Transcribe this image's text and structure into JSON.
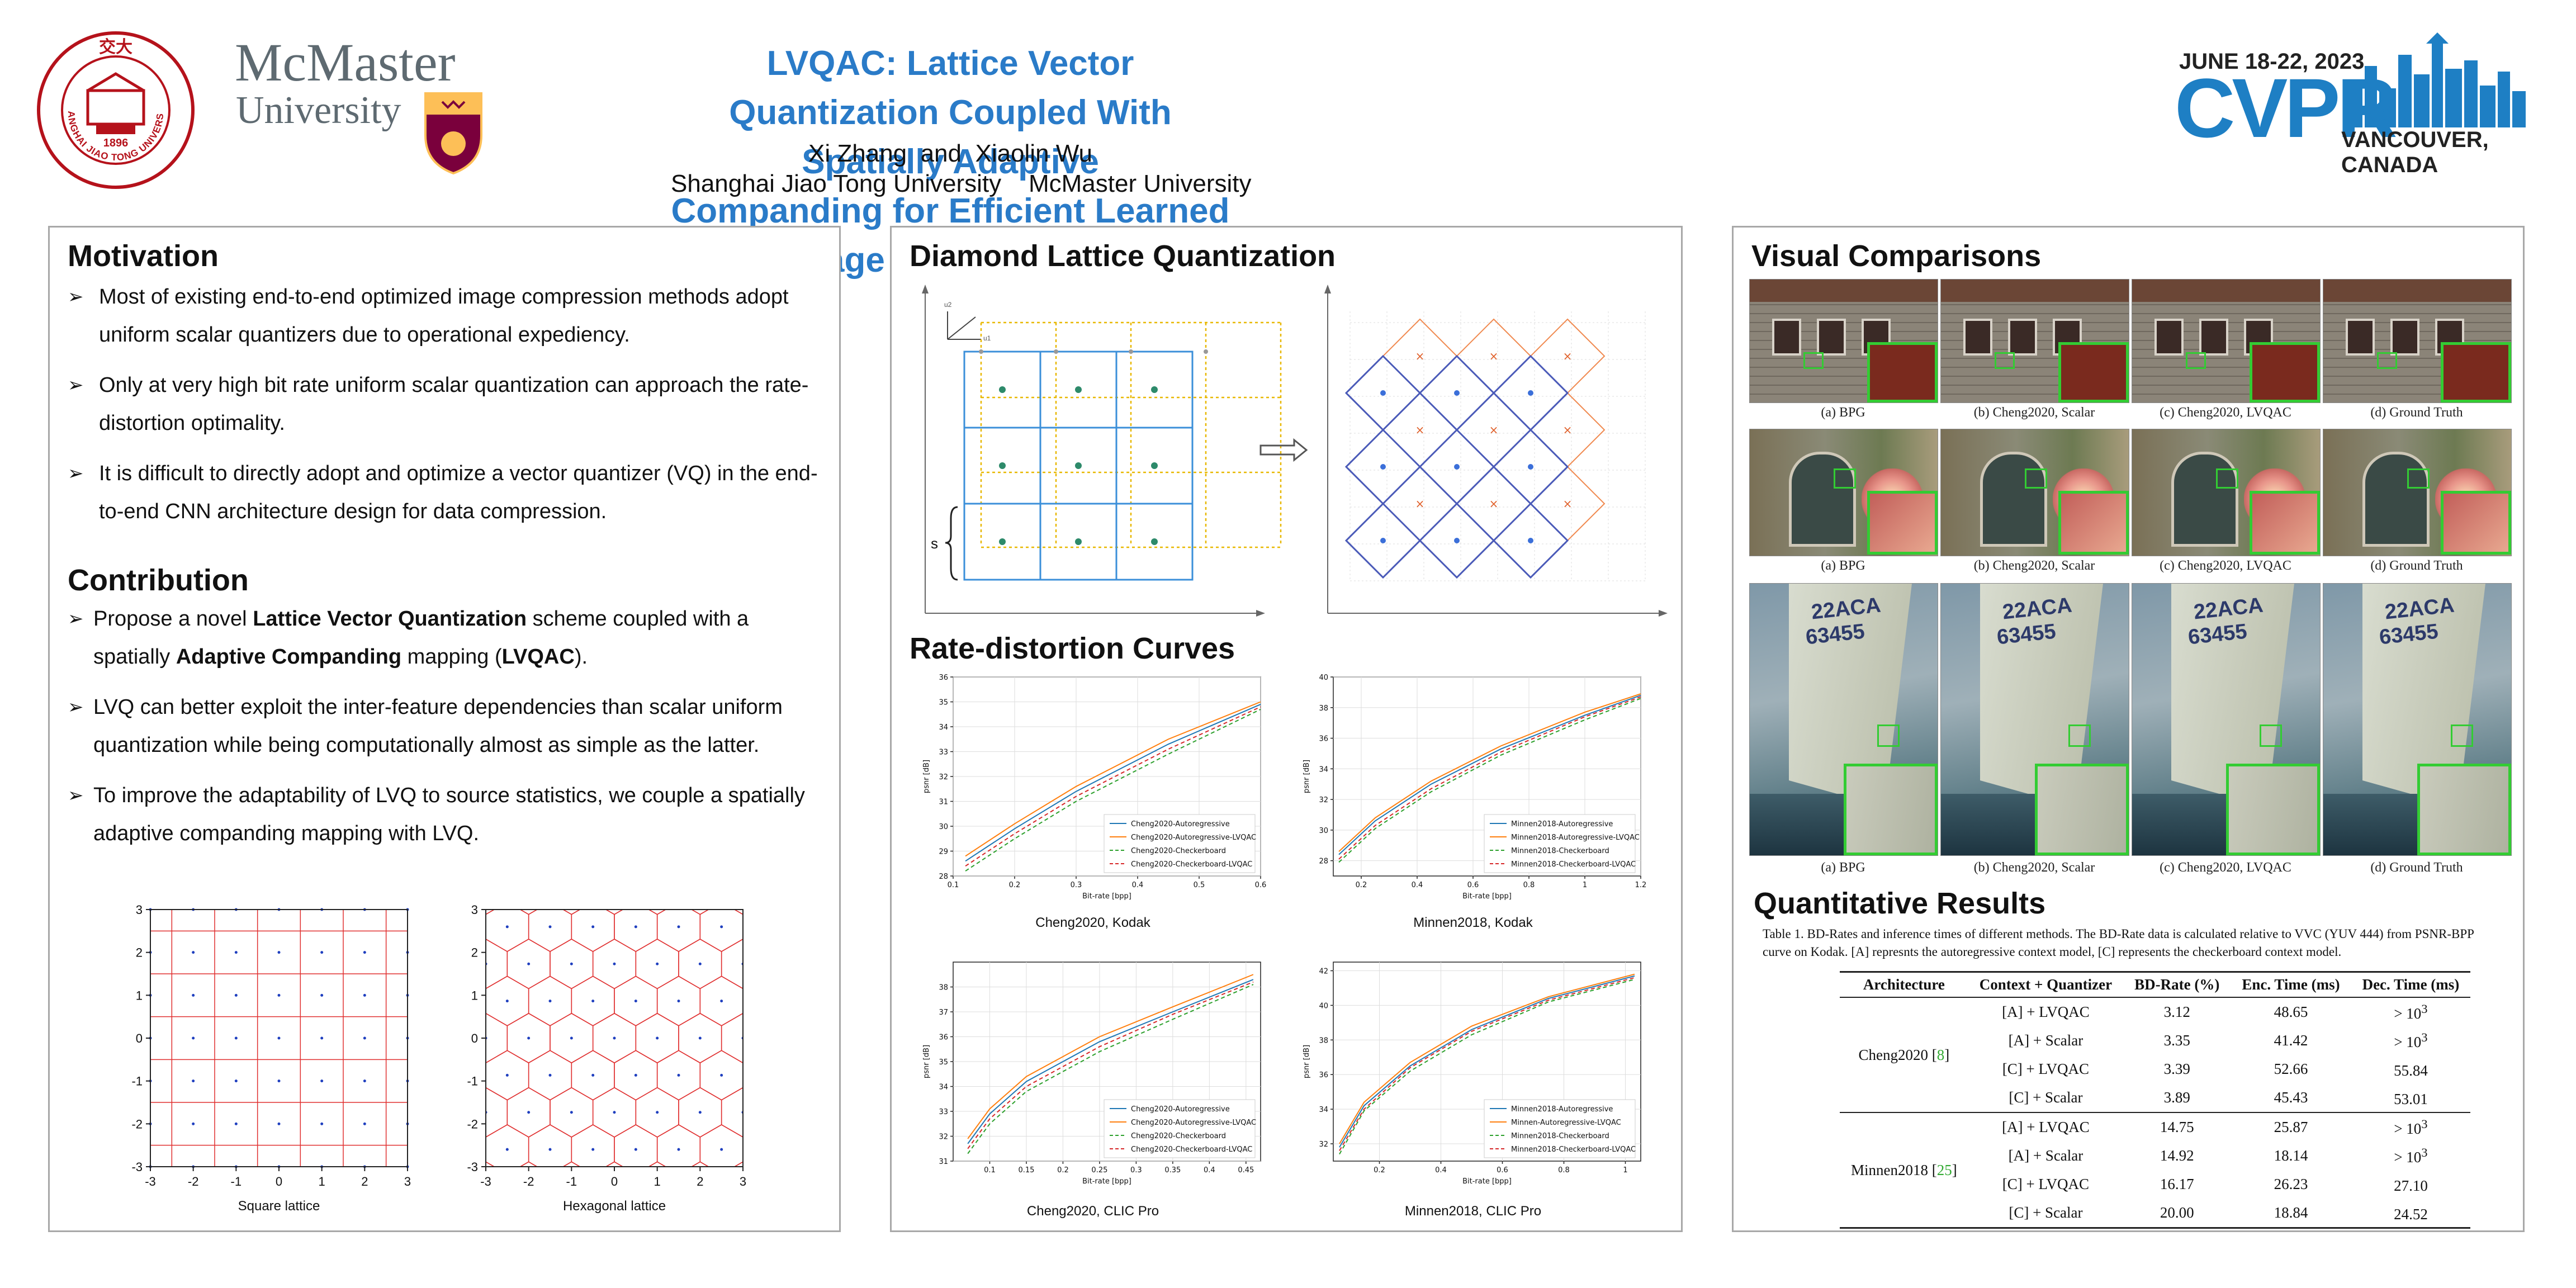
{
  "header": {
    "title_line1": "LVQAC: Lattice Vector Quantization Coupled With Spatially Adaptive",
    "title_line2": "Companding for Efficient Learned Image Compression",
    "authors": "Xi Zhang  and  Xiaolin Wu",
    "affiliations": "Shanghai Jiao Tong University    McMaster University",
    "sjtu_logo_text": "SHANGHAI JIAO TONG UNIVERSITY",
    "sjtu_logo_chars": "交大",
    "sjtu_logo_year": "1896",
    "mcmaster_line1": "McMaster",
    "mcmaster_line2": "University",
    "cvpr_dates": "JUNE 18-22, 2023",
    "cvpr_name": "CVPR",
    "cvpr_location": "VANCOUVER, CANADA"
  },
  "motivation": {
    "heading": "Motivation",
    "bullets": [
      "Most of existing end-to-end optimized image compression methods adopt uniform scalar quantizers due to operational expediency.",
      "Only at very high bit rate uniform scalar quantization can approach the rate-distortion optimality.",
      "It is difficult to directly adopt and optimize a vector quantizer (VQ) in the end-to-end CNN architecture design for data compression."
    ]
  },
  "contribution": {
    "heading": "Contribution",
    "b1_pre": "Propose a novel ",
    "b1_bold1": "Lattice Vector Quantization",
    "b1_mid": " scheme coupled with a spatially ",
    "b1_bold2": "Adaptive Companding",
    "b1_mid2": " mapping (",
    "b1_bold3": "LVQAC",
    "b1_post": ").",
    "b2": "LVQ can better exploit the inter-feature dependencies than scalar uniform quantization while being computationally almost as simple as the latter.",
    "b3": "To improve the adaptability of LVQ to source statistics, we couple a spatially adaptive companding mapping with LVQ."
  },
  "lattice_plots": {
    "ticks": [
      "-3",
      "-2",
      "-1",
      "0",
      "1",
      "2",
      "3"
    ],
    "square_caption": "Square lattice",
    "hex_caption": "Hexagonal lattice"
  },
  "diamond": {
    "heading": "Diamond Lattice Quantization",
    "s_label": "s",
    "axis_u1": "u1",
    "axis_u2": "u2"
  },
  "rd": {
    "heading": "Rate-distortion Curves",
    "captions": [
      "Cheng2020, Kodak",
      "Minnen2018, Kodak",
      "Cheng2020, CLIC Pro",
      "Minnen2018, CLIC Pro"
    ]
  },
  "chart_data": [
    {
      "type": "line",
      "title": "Cheng2020, Kodak",
      "xlabel": "Bit-rate [bpp]",
      "ylabel": "psnr [dB]",
      "xlim": [
        0.1,
        0.6
      ],
      "ylim": [
        28,
        36
      ],
      "xticks": [
        0.1,
        0.2,
        0.3,
        0.4,
        0.5,
        0.6
      ],
      "yticks": [
        28,
        29,
        30,
        31,
        32,
        33,
        34,
        35,
        36
      ],
      "legend": "bottom-right",
      "series": [
        {
          "name": "Cheng2020-Autoregressive",
          "color": "#1f77b4",
          "dash": "solid",
          "x": [
            0.12,
            0.2,
            0.3,
            0.45,
            0.6
          ],
          "y": [
            28.6,
            29.9,
            31.4,
            33.3,
            34.9
          ]
        },
        {
          "name": "Cheng2020-Autoregressive-LVQAC",
          "color": "#ff7f0e",
          "dash": "solid",
          "x": [
            0.12,
            0.2,
            0.3,
            0.45,
            0.6
          ],
          "y": [
            28.8,
            30.1,
            31.6,
            33.5,
            35.0
          ]
        },
        {
          "name": "Cheng2020-Checkerboard",
          "color": "#2ca02c",
          "dash": "dashed",
          "x": [
            0.12,
            0.2,
            0.3,
            0.45,
            0.6
          ],
          "y": [
            28.2,
            29.5,
            31.0,
            32.9,
            34.7
          ]
        },
        {
          "name": "Cheng2020-Checkerboard-LVQAC",
          "color": "#d62728",
          "dash": "dashed",
          "x": [
            0.12,
            0.2,
            0.3,
            0.45,
            0.6
          ],
          "y": [
            28.4,
            29.7,
            31.2,
            33.1,
            34.8
          ]
        }
      ]
    },
    {
      "type": "line",
      "title": "Minnen2018, Kodak",
      "xlabel": "Bit-rate [bpp]",
      "ylabel": "psnr [dB]",
      "xlim": [
        0.1,
        1.2
      ],
      "ylim": [
        27,
        40
      ],
      "xticks": [
        0.2,
        0.4,
        0.6,
        0.8,
        1.0,
        1.2
      ],
      "yticks": [
        28,
        30,
        32,
        34,
        36,
        38,
        40
      ],
      "legend": "bottom-right",
      "series": [
        {
          "name": "Minnen2018-Autoregressive",
          "color": "#1f77b4",
          "dash": "solid",
          "x": [
            0.12,
            0.25,
            0.45,
            0.7,
            1.0,
            1.2
          ],
          "y": [
            28.4,
            30.6,
            33.0,
            35.3,
            37.5,
            38.8
          ]
        },
        {
          "name": "Minnen2018-Autoregressive-LVQAC",
          "color": "#ff7f0e",
          "dash": "solid",
          "x": [
            0.12,
            0.25,
            0.45,
            0.7,
            1.0,
            1.2
          ],
          "y": [
            28.6,
            30.8,
            33.2,
            35.5,
            37.7,
            38.9
          ]
        },
        {
          "name": "Minnen2018-Checkerboard",
          "color": "#2ca02c",
          "dash": "dashed",
          "x": [
            0.12,
            0.25,
            0.45,
            0.7,
            1.0,
            1.2
          ],
          "y": [
            27.9,
            30.1,
            32.5,
            34.9,
            37.2,
            38.6
          ]
        },
        {
          "name": "Minnen2018-Checkerboard-LVQAC",
          "color": "#d62728",
          "dash": "dashed",
          "x": [
            0.12,
            0.25,
            0.45,
            0.7,
            1.0,
            1.2
          ],
          "y": [
            28.1,
            30.3,
            32.7,
            35.1,
            37.4,
            38.7
          ]
        }
      ]
    },
    {
      "type": "line",
      "title": "Cheng2020, CLIC Pro",
      "xlabel": "Bit-rate [bpp]",
      "ylabel": "psnr [dB]",
      "xlim": [
        0.05,
        0.47
      ],
      "ylim": [
        31,
        39
      ],
      "xticks": [
        0.1,
        0.15,
        0.2,
        0.25,
        0.3,
        0.35,
        0.4,
        0.45
      ],
      "yticks": [
        31,
        32,
        33,
        34,
        35,
        36,
        37,
        38
      ],
      "legend": "bottom-right",
      "series": [
        {
          "name": "Cheng2020-Autoregressive",
          "color": "#1f77b4",
          "dash": "solid",
          "x": [
            0.07,
            0.1,
            0.15,
            0.25,
            0.35,
            0.46
          ],
          "y": [
            31.7,
            32.9,
            34.2,
            35.8,
            37.0,
            38.3
          ]
        },
        {
          "name": "Cheng2020-Autoregressive-LVQAC",
          "color": "#ff7f0e",
          "dash": "solid",
          "x": [
            0.07,
            0.1,
            0.15,
            0.25,
            0.35,
            0.46
          ],
          "y": [
            31.9,
            33.1,
            34.4,
            36.0,
            37.2,
            38.5
          ]
        },
        {
          "name": "Cheng2020-Checkerboard",
          "color": "#2ca02c",
          "dash": "dashed",
          "x": [
            0.07,
            0.1,
            0.15,
            0.25,
            0.35,
            0.46
          ],
          "y": [
            31.3,
            32.5,
            33.8,
            35.4,
            36.7,
            38.1
          ]
        },
        {
          "name": "Cheng2020-Checkerboard-LVQAC",
          "color": "#d62728",
          "dash": "dashed",
          "x": [
            0.07,
            0.1,
            0.15,
            0.25,
            0.35,
            0.46
          ],
          "y": [
            31.5,
            32.7,
            34.0,
            35.6,
            36.9,
            38.2
          ]
        }
      ]
    },
    {
      "type": "line",
      "title": "Minnen2018, CLIC Pro",
      "xlabel": "Bit-rate [bpp]",
      "ylabel": "psnr [dB]",
      "xlim": [
        0.05,
        1.05
      ],
      "ylim": [
        31,
        42.5
      ],
      "xticks": [
        0.2,
        0.4,
        0.6,
        0.8,
        1.0
      ],
      "yticks": [
        32,
        34,
        36,
        38,
        40,
        42
      ],
      "legend": "bottom-right",
      "series": [
        {
          "name": "Minnen2018-Autoregressive",
          "color": "#1f77b4",
          "dash": "solid",
          "x": [
            0.07,
            0.15,
            0.3,
            0.5,
            0.75,
            1.03
          ],
          "y": [
            31.8,
            34.2,
            36.5,
            38.6,
            40.4,
            41.7
          ]
        },
        {
          "name": "Minnen-Autoregressive-LVQAC",
          "color": "#ff7f0e",
          "dash": "solid",
          "x": [
            0.07,
            0.15,
            0.3,
            0.5,
            0.75,
            1.03
          ],
          "y": [
            32.0,
            34.4,
            36.7,
            38.8,
            40.5,
            41.8
          ]
        },
        {
          "name": "Minnen2018-Checkerboard",
          "color": "#2ca02c",
          "dash": "dashed",
          "x": [
            0.07,
            0.15,
            0.3,
            0.5,
            0.75,
            1.03
          ],
          "y": [
            31.4,
            33.9,
            36.2,
            38.3,
            40.2,
            41.5
          ]
        },
        {
          "name": "Minnen2018-Checkerboard-LVQAC",
          "color": "#d62728",
          "dash": "dashed",
          "x": [
            0.07,
            0.15,
            0.3,
            0.5,
            0.75,
            1.03
          ],
          "y": [
            31.6,
            34.0,
            36.4,
            38.5,
            40.3,
            41.6
          ]
        }
      ]
    }
  ],
  "visual": {
    "heading": "Visual Comparisons",
    "captions": [
      "(a) BPG",
      "(b) Cheng2020, Scalar",
      "(c) Cheng2020, LVQAC",
      "(d) Ground Truth"
    ],
    "sail_numbers": [
      "22ACA",
      "63455"
    ]
  },
  "quant": {
    "heading": "Quantitative Results",
    "caption": "Table 1. BD-Rates and inference times of different methods. The BD-Rate data is calculated relative to VVC (YUV 444) from PSNR-BPP curve on Kodak. [A] represnts the autoregressive context model, [C] represents the checkerboard context model.",
    "columns": [
      "Architecture",
      "Context + Quantizer",
      "BD-Rate (%)",
      "Enc. Time (ms)",
      "Dec. Time (ms)"
    ],
    "groups": [
      {
        "arch": "Cheng2020",
        "ref": "8",
        "rows": [
          {
            "cq": "[A] + LVQAC",
            "bd": "3.12",
            "enc": "48.65",
            "dec_pre": "> 10",
            "dec_sup": "3"
          },
          {
            "cq": "[A] + Scalar",
            "bd": "3.35",
            "enc": "41.42",
            "dec_pre": "> 10",
            "dec_sup": "3"
          },
          {
            "cq": "[C] + LVQAC",
            "bd": "3.39",
            "enc": "52.66",
            "dec_pre": "55.84",
            "dec_sup": ""
          },
          {
            "cq": "[C] + Scalar",
            "bd": "3.89",
            "enc": "45.43",
            "dec_pre": "53.01",
            "dec_sup": ""
          }
        ]
      },
      {
        "arch": "Minnen2018",
        "ref": "25",
        "rows": [
          {
            "cq": "[A] + LVQAC",
            "bd": "14.75",
            "enc": "25.87",
            "dec_pre": "> 10",
            "dec_sup": "3"
          },
          {
            "cq": "[A] + Scalar",
            "bd": "14.92",
            "enc": "18.14",
            "dec_pre": "> 10",
            "dec_sup": "3"
          },
          {
            "cq": "[C] + LVQAC",
            "bd": "16.17",
            "enc": "26.23",
            "dec_pre": "27.10",
            "dec_sup": ""
          },
          {
            "cq": "[C] + Scalar",
            "bd": "20.00",
            "enc": "18.84",
            "dec_pre": "24.52",
            "dec_sup": ""
          }
        ]
      }
    ]
  }
}
